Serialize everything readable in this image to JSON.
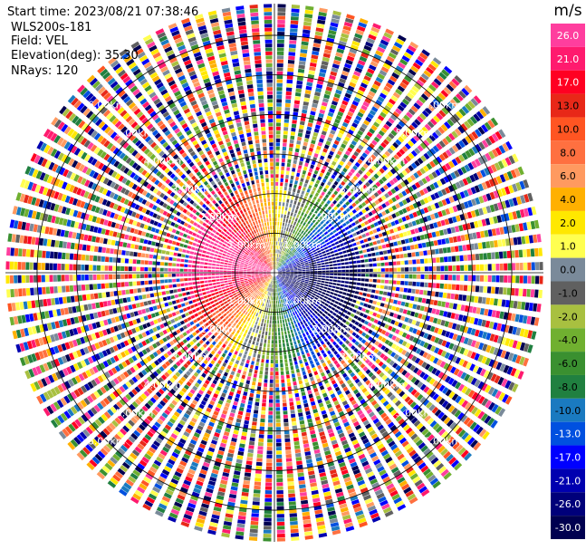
{
  "header": {
    "start_time": "Start time: 2023/08/21 07:38:46",
    "instrument": "WLS200s-181",
    "field": "Field: VEL",
    "elevation": "Elevation(deg): 35.30",
    "nrays": "NRays: 120"
  },
  "chart_data": {
    "type": "heatmap",
    "projection": "polar (PPI scan)",
    "field": "VEL",
    "n_rays": 120,
    "range_rings_km": [
      1.0,
      2.0,
      3.0,
      4.0,
      5.0,
      6.0
    ],
    "range_ring_labels": [
      "1.00km",
      "2.00km",
      "3.00km",
      "4.00km",
      "5.00km",
      "6.00km"
    ],
    "max_range_km": 6.8,
    "pattern_notes": {
      "near_field_km": 2.2,
      "toward_quadrant": "west / north-west (positive velocity, reds/pinks)",
      "away_quadrant": "east / south-east (negative velocity, blues)",
      "far_field": "noisy, random velocities across full colour scale"
    },
    "colorbar": {
      "unit": "m/s",
      "ticks": [
        "26.0",
        "21.0",
        "17.0",
        "13.0",
        "10.0",
        "8.0",
        "6.0",
        "4.0",
        "2.0",
        "1.0",
        "0.0",
        "-1.0",
        "-2.0",
        "-4.0",
        "-6.0",
        "-8.0",
        "-10.0",
        "-13.0",
        "-17.0",
        "-21.0",
        "-26.0",
        "-30.0"
      ],
      "colors": [
        "#ff3e9e",
        "#ff1a6e",
        "#ff0022",
        "#e82818",
        "#ff5522",
        "#ff7040",
        "#ff9a60",
        "#ffb000",
        "#ffe800",
        "#ffff50",
        "#7a8a9a",
        "#606060",
        "#a8c040",
        "#70b030",
        "#3a9030",
        "#208040",
        "#1a7ac0",
        "#0050e0",
        "#0000ff",
        "#0000b0",
        "#00007a",
        "#000050"
      ]
    }
  }
}
